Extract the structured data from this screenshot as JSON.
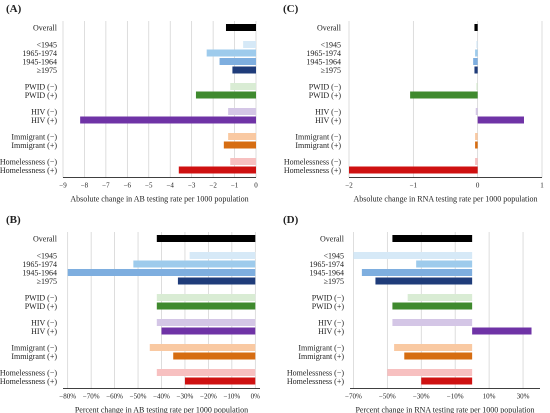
{
  "chart_data": [
    {
      "panel": "(A)",
      "type": "bar",
      "orientation": "horizontal",
      "xlabel": "Absolute change in AB testing rate per 1000 population",
      "xlim": [
        -9,
        0
      ],
      "xticks": [
        -9,
        -8,
        -7,
        -6,
        -5,
        -4,
        -3,
        -2,
        -1,
        0
      ],
      "xtick_labels": [
        "−9",
        "−8",
        "−7",
        "−6",
        "−5",
        "−4",
        "−3",
        "−2",
        "−1",
        "0"
      ],
      "grid": true,
      "categories": [
        "Overall",
        "<1945",
        "1965-1974",
        "1945-1964",
        "≥1975",
        "PWID (−)",
        "PWID (+)",
        "HIV (−)",
        "HIV (+)",
        "Immigrant (−)",
        "Immigrant (+)",
        "Homelessness (−)",
        "Homelessness (+)"
      ],
      "values": [
        -1.4,
        -0.6,
        -2.3,
        -1.7,
        -1.1,
        -1.2,
        -2.8,
        -1.3,
        -8.2,
        -1.3,
        -1.5,
        -1.2,
        -3.6
      ]
    },
    {
      "panel": "(C)",
      "type": "bar",
      "orientation": "horizontal",
      "xlabel": "Absolute change in RNA testing rate per 1000 population",
      "xlim": [
        -2,
        1
      ],
      "xticks": [
        -2,
        -1,
        0,
        1
      ],
      "xtick_labels": [
        "−2",
        "−1",
        "0",
        "1"
      ],
      "grid": true,
      "categories": [
        "Overall",
        "<1945",
        "1965-1974",
        "1945-1964",
        "≥1975",
        "PWID (−)",
        "PWID (+)",
        "HIV (−)",
        "HIV (+)",
        "Immigrant (−)",
        "Immigrant (+)",
        "Homelessness (−)",
        "Homelessness (+)"
      ],
      "values": [
        -0.05,
        -0.02,
        -0.04,
        -0.07,
        -0.05,
        -0.02,
        -1.05,
        -0.03,
        0.72,
        -0.04,
        -0.04,
        -0.04,
        -2.0
      ]
    },
    {
      "panel": "(B)",
      "type": "bar",
      "orientation": "horizontal",
      "xlabel": "Percent change in AB testing rate per 1000 population",
      "xlim": [
        -82,
        2
      ],
      "xticks": [
        -80,
        -70,
        -60,
        -50,
        -40,
        -30,
        -20,
        -10,
        0
      ],
      "xtick_labels": [
        "−80%",
        "−70%",
        "−60%",
        "−50%",
        "−40%",
        "−30%",
        "−20%",
        "−10%",
        "0%"
      ],
      "grid": true,
      "categories": [
        "Overall",
        "<1945",
        "1965-1974",
        "1945-1964",
        "≥1975",
        "PWID (−)",
        "PWID (+)",
        "HIV (−)",
        "HIV (+)",
        "Immigrant (−)",
        "Immigrant (+)",
        "Homelessness (−)",
        "Homelessness (+)"
      ],
      "values": [
        -42,
        -28,
        -52,
        -80,
        -33,
        -42,
        -42,
        -42,
        -40,
        -45,
        -35,
        -42,
        -30
      ]
    },
    {
      "panel": "(D)",
      "type": "bar",
      "orientation": "horizontal",
      "xlabel": "Percent change in RNA testing rate per 1000 population",
      "xlim": [
        -72,
        40
      ],
      "xticks": [
        -70,
        -50,
        -30,
        -10,
        10,
        30
      ],
      "xtick_labels": [
        "−70%",
        "−50%",
        "−30%",
        "−10%",
        "10%",
        "30%"
      ],
      "grid": true,
      "categories": [
        "Overall",
        "<1945",
        "1965-1974",
        "1945-1964",
        "≥1975",
        "PWID (−)",
        "PWID (+)",
        "HIV (−)",
        "HIV (+)",
        "Immigrant (−)",
        "Immigrant (+)",
        "Homelessness (−)",
        "Homelessness (+)"
      ],
      "values": [
        -47,
        -70,
        -33,
        -65,
        -57,
        -38,
        -47,
        -47,
        35,
        -46,
        -40,
        -50,
        -30
      ]
    }
  ],
  "colors": {
    "overall": "#000000",
    "age_lt1945": "#d6e9f7",
    "age_1965_1974": "#9ecbec",
    "age_1945_1964": "#7eaedf",
    "age_ge1975": "#1f3c7a",
    "pwid_neg": "#d9ecd4",
    "pwid_pos": "#3f8a2e",
    "hiv_neg": "#d4c6e6",
    "hiv_pos": "#6f33a6",
    "immigrant_neg": "#f9c9a2",
    "immigrant_pos": "#d66d12",
    "homeless_neg": "#f7c0c0",
    "homeless_pos": "#cf1111",
    "grid": "#cfcfcf",
    "axis": "#000000"
  }
}
